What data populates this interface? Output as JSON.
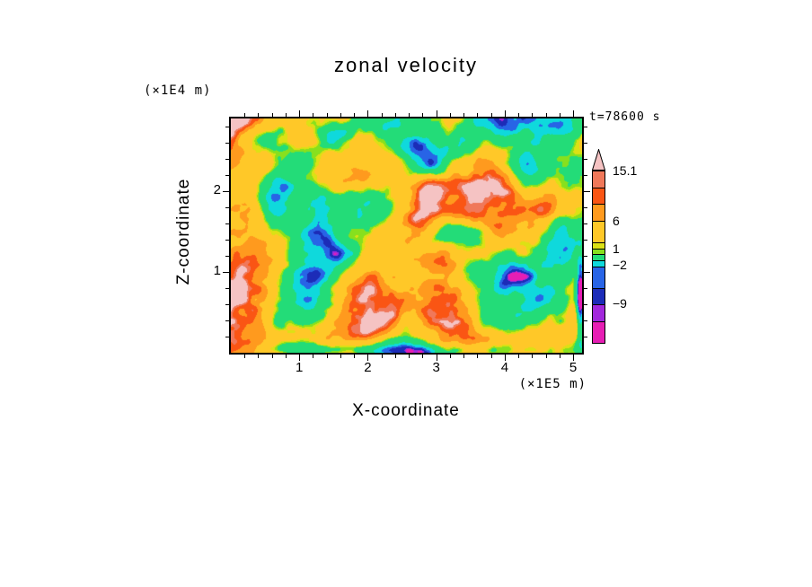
{
  "chart_data": {
    "type": "heatmap",
    "title": "zonal velocity",
    "time_annotation": "t=78600 s",
    "xlabel": "X-coordinate",
    "x_unit": "(×1E5 m)",
    "ylabel": "Z-coordinate",
    "y_unit": "(×1E4 m)",
    "x_range": [
      0,
      5.13
    ],
    "y_range": [
      0,
      2.9
    ],
    "x_ticks": [
      1,
      2,
      3,
      4,
      5
    ],
    "y_ticks": [
      1,
      2
    ],
    "minor_tick_step": 0.2,
    "grid": false,
    "legend_position": "right-colorbar",
    "colorbar": {
      "levels": [
        -16,
        -12,
        -9,
        -6,
        -2,
        -1,
        0,
        1,
        2,
        6,
        9,
        12,
        15.1
      ],
      "colors": [
        "#E61EB4",
        "#A228DC",
        "#1C2CB8",
        "#2864E6",
        "#0FD9DC",
        "#23DC78",
        "#87E01E",
        "#DCE114",
        "#FFC828",
        "#FF9A1E",
        "#FA5514",
        "#F0785A",
        "#F5C3C3"
      ],
      "max_value": 15.1,
      "labels": [
        {
          "value": 15.1,
          "text": "15.1"
        },
        {
          "value": 6,
          "text": "6"
        },
        {
          "value": 1,
          "text": "1"
        },
        {
          "value": -2,
          "text": "−2"
        },
        {
          "value": -9,
          "text": "−9"
        }
      ]
    },
    "field": {
      "description": "Turbulent zonal-velocity cross-section (x vs z); values span roughly -16 to 15.1 m/s; dominated by green (weakly negative) and gold/orange (positive) patches with scattered dark-blue negative cores, cyan filaments, rare red maxima and a magenta minimum sliver at the right edge. Reproduced procedurally.",
      "seed": 20260412,
      "octaves": 5,
      "base_freq_x": 3.4,
      "base_freq_y": 2.6,
      "shear": 0.35,
      "bias": 0.53,
      "contrast": 2.5,
      "trend": 0.1,
      "thresholds": [
        0.015,
        0.035,
        0.09,
        0.16,
        0.28,
        0.5,
        0.535,
        0.57,
        0.78,
        0.88,
        0.95,
        0.985
      ],
      "features": [
        {
          "x": 0.1,
          "y": 0.08,
          "rx": 0.07,
          "ry": 0.08,
          "a": -0.38
        },
        {
          "x": 0.3,
          "y": 0.06,
          "rx": 0.05,
          "ry": 0.05,
          "a": -0.3
        },
        {
          "x": 0.52,
          "y": 0.12,
          "rx": 0.05,
          "ry": 0.06,
          "a": -0.28
        },
        {
          "x": 0.84,
          "y": 0.22,
          "rx": 0.06,
          "ry": 0.09,
          "a": -0.45
        },
        {
          "x": 0.66,
          "y": 0.5,
          "rx": 0.08,
          "ry": 0.07,
          "a": -0.45
        },
        {
          "x": 0.94,
          "y": 0.52,
          "rx": 0.04,
          "ry": 0.25,
          "a": -0.3
        },
        {
          "x": 0.16,
          "y": 0.72,
          "rx": 0.16,
          "ry": 0.2,
          "a": 0.22
        },
        {
          "x": 0.45,
          "y": 0.82,
          "rx": 0.2,
          "ry": 0.14,
          "a": 0.22
        },
        {
          "x": 0.07,
          "y": 0.4,
          "rx": 0.05,
          "ry": 0.09,
          "a": 0.4
        },
        {
          "x": 0.33,
          "y": 0.26,
          "rx": 0.11,
          "ry": 0.06,
          "a": 0.3
        },
        {
          "x": 0.6,
          "y": 0.28,
          "rx": 0.12,
          "ry": 0.05,
          "a": 0.26
        },
        {
          "x": 0.08,
          "y": 0.18,
          "rx": 0.06,
          "ry": 0.07,
          "a": 0.3
        },
        {
          "x": 0.88,
          "y": 0.08,
          "rx": 0.08,
          "ry": 0.05,
          "a": 0.25
        },
        {
          "x": 0.76,
          "y": 0.66,
          "rx": 0.1,
          "ry": 0.07,
          "a": -0.26
        },
        {
          "x": 0.995,
          "y": 0.78,
          "rx": 0.012,
          "ry": 0.16,
          "a": -0.85
        },
        {
          "x": 0.22,
          "y": 0.985,
          "rx": 0.14,
          "ry": 0.035,
          "a": -0.45
        },
        {
          "x": 0.6,
          "y": 0.99,
          "rx": 0.3,
          "ry": 0.03,
          "a": -0.3
        }
      ]
    }
  }
}
